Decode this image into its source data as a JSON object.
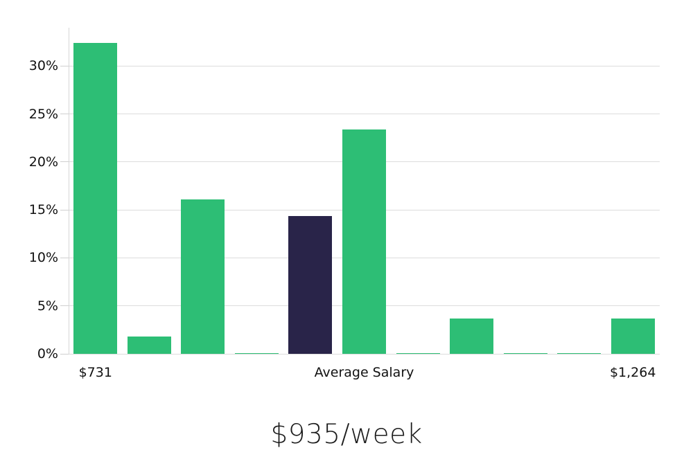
{
  "chart_data": {
    "type": "bar",
    "title": "$935/week",
    "xlabel": "",
    "ylabel": "",
    "ylim": [
      0,
      34
    ],
    "grid": true,
    "legend": null,
    "categories": [
      "$731",
      "",
      "",
      "",
      "",
      "Average Salary",
      "",
      "",
      "",
      "",
      "$1,264"
    ],
    "values": [
      32.4,
      1.8,
      16.1,
      0.1,
      14.4,
      23.4,
      0.1,
      3.7,
      0.1,
      0.1,
      3.7
    ],
    "highlight_index": 4,
    "y_ticks": [
      0,
      5,
      10,
      15,
      20,
      25,
      30
    ],
    "y_tick_labels": [
      "0%",
      "5%",
      "10%",
      "15%",
      "20%",
      "25%",
      "30%"
    ],
    "x_tick_labels": [
      {
        "slot": 0,
        "label": "$731"
      },
      {
        "slot": 5,
        "label": "Average Salary"
      },
      {
        "slot": 10,
        "label": "$1,264"
      }
    ],
    "colors": {
      "bar": "#2dbe75",
      "highlight": "#292449",
      "grid": "#dcdcdc",
      "text": "#111111"
    }
  }
}
